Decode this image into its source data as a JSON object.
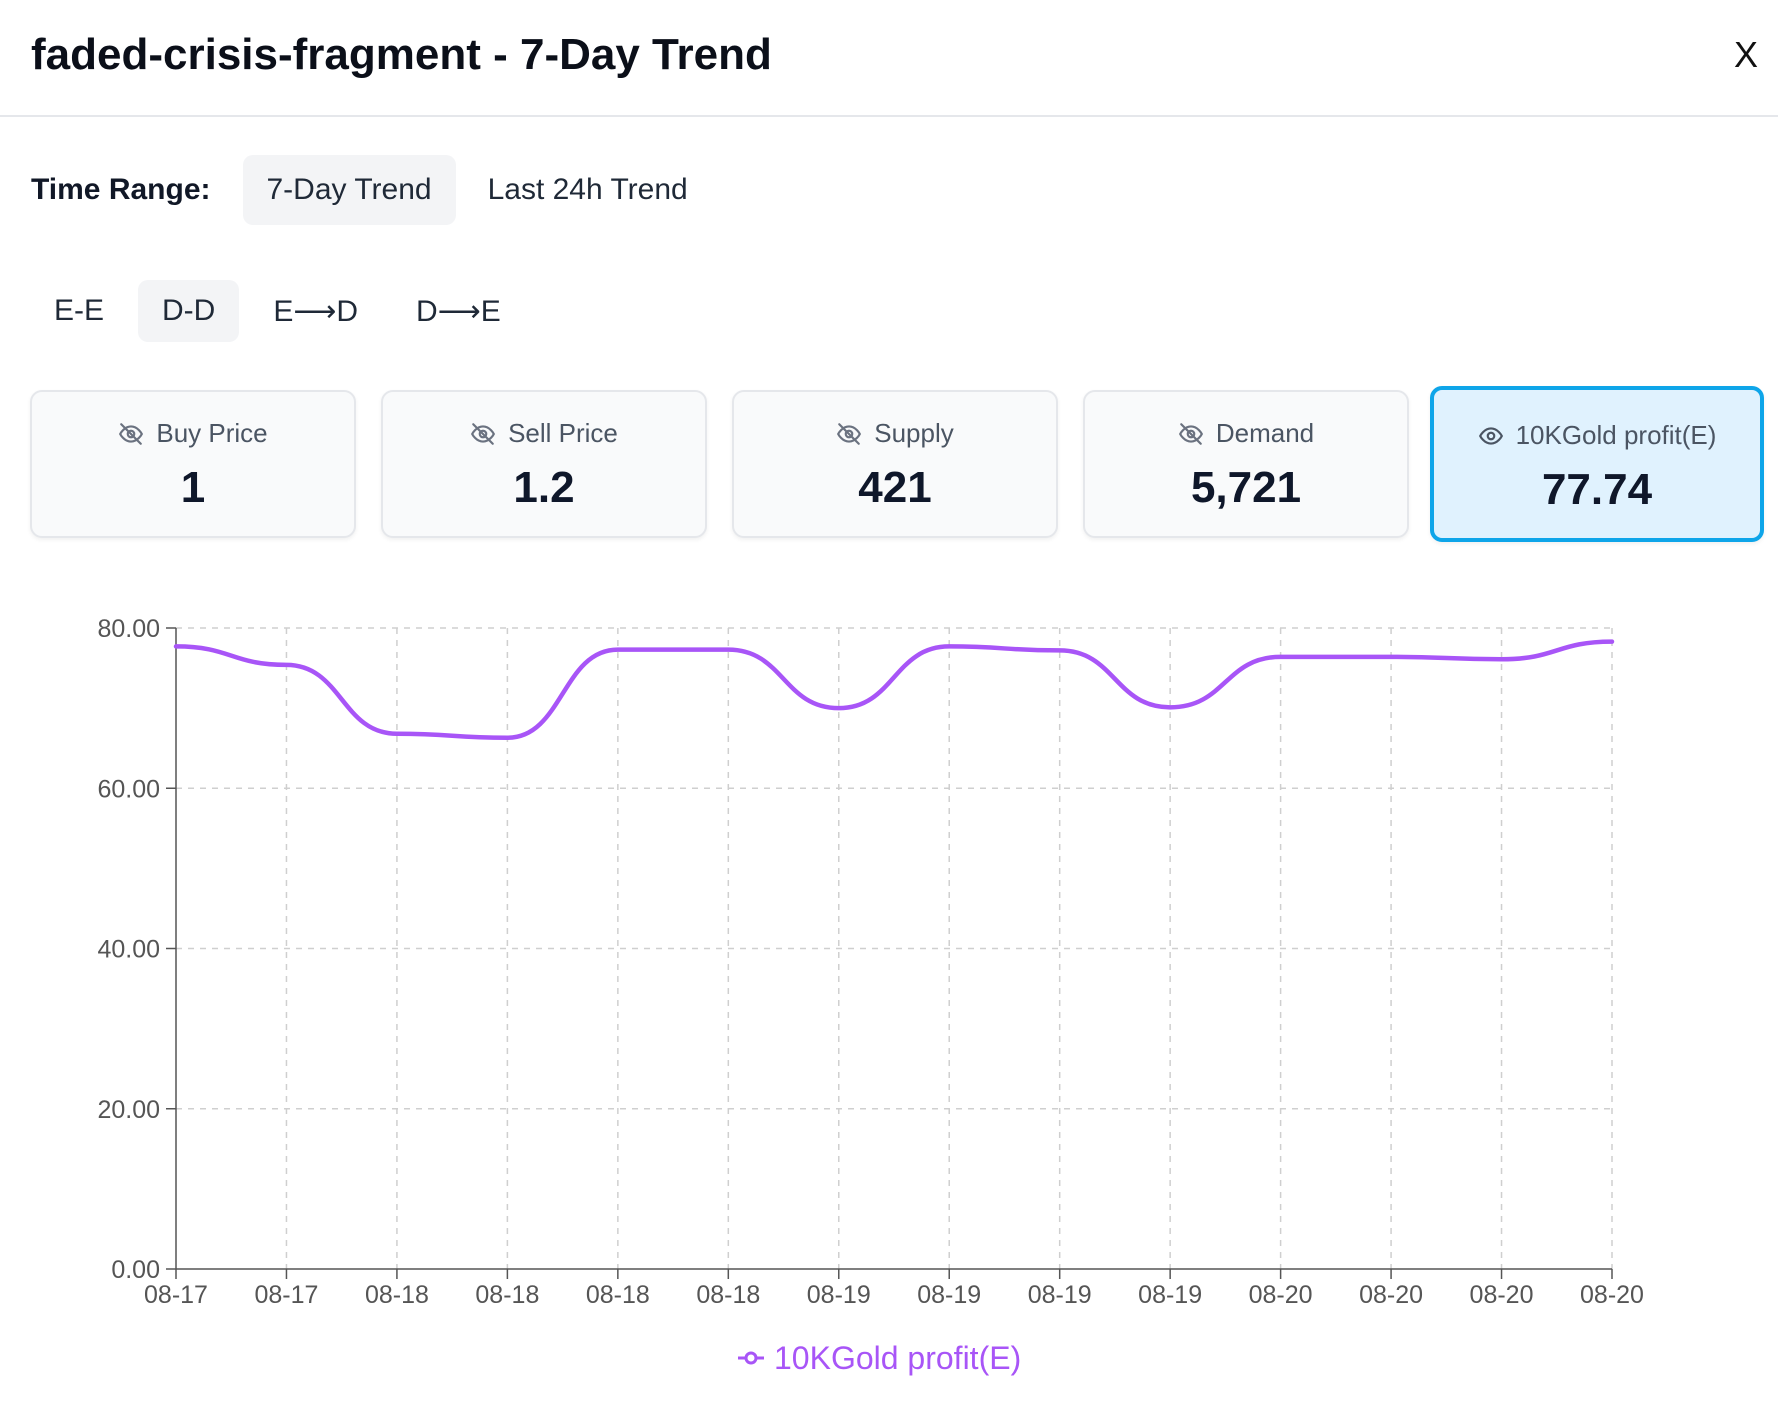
{
  "dialog": {
    "title": "faded-crisis-fragment - 7-Day Trend",
    "close_label": "X"
  },
  "time_range": {
    "label": "Time Range:",
    "options": [
      "7-Day Trend",
      "Last 24h Trend"
    ],
    "selected": "7-Day Trend"
  },
  "modes": {
    "options": [
      "E-E",
      "D-D",
      "E⟶D",
      "D⟶E"
    ],
    "selected": "D-D"
  },
  "metrics": [
    {
      "label": "Buy Price",
      "value": "1",
      "icon": "eye-off-icon",
      "visible": false
    },
    {
      "label": "Sell Price",
      "value": "1.2",
      "icon": "eye-off-icon",
      "visible": false
    },
    {
      "label": "Supply",
      "value": "421",
      "icon": "eye-off-icon",
      "visible": false
    },
    {
      "label": "Demand",
      "value": "5,721",
      "icon": "eye-off-icon",
      "visible": false
    },
    {
      "label": "10KGold profit(E)",
      "value": "77.74",
      "icon": "eye-icon",
      "visible": true
    }
  ],
  "colors": {
    "accent": "#0ea5e9",
    "series": "#a855f7"
  },
  "chart_data": {
    "type": "line",
    "x": [
      "08-17",
      "08-17",
      "08-18",
      "08-18",
      "08-18",
      "08-18",
      "08-19",
      "08-19",
      "08-19",
      "08-19",
      "08-20",
      "08-20",
      "08-20",
      "08-20"
    ],
    "series": [
      {
        "name": "10KGold profit(E)",
        "values": [
          77.7,
          75.4,
          66.8,
          66.3,
          77.3,
          77.3,
          70.0,
          77.7,
          77.2,
          70.1,
          76.4,
          76.4,
          76.1,
          78.3
        ]
      }
    ],
    "ylim": [
      0,
      80
    ],
    "yticks": [
      "0.00",
      "20.00",
      "40.00",
      "60.00",
      "80.00"
    ],
    "grid": true,
    "legend": "bottom-center",
    "xlabel": "",
    "ylabel": ""
  }
}
